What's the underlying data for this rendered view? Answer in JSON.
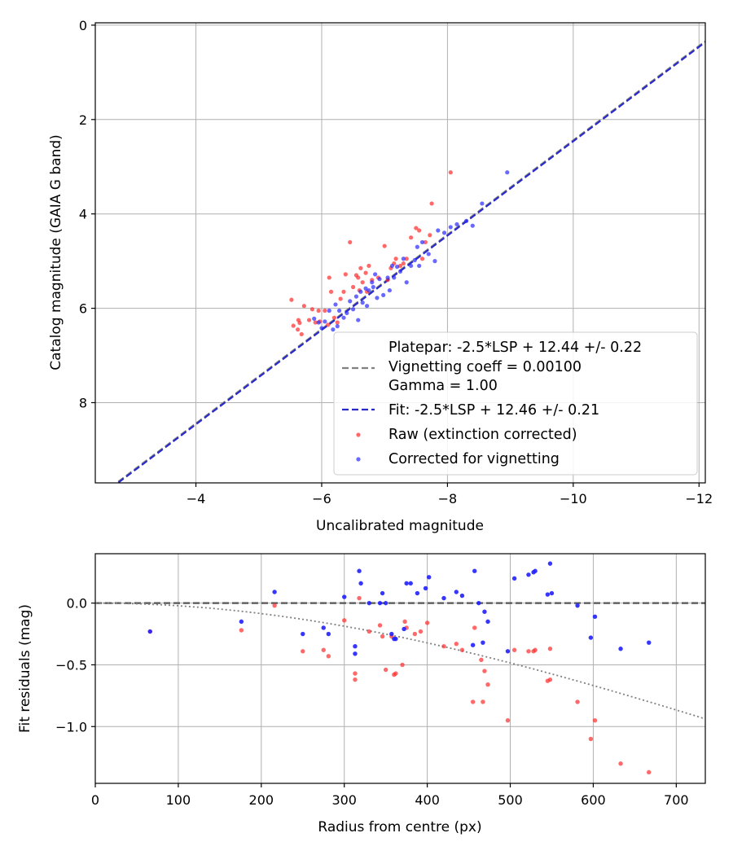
{
  "chart_data": [
    {
      "type": "scatter",
      "xlabel": "Uncalibrated magnitude",
      "ylabel": "Catalog magnitude (GAIA G band)",
      "xlim": [
        -2.4,
        -12.1
      ],
      "ylim": [
        9.7,
        -0.05
      ],
      "x_inverted": true,
      "y_inverted": true,
      "xticks": [
        -4,
        -6,
        -8,
        -10,
        -12
      ],
      "xtick_labels": [
        "−4",
        "−6",
        "−8",
        "−10",
        "−12"
      ],
      "yticks": [
        0,
        2,
        4,
        6,
        8
      ],
      "ytick_labels": [
        "0",
        "2",
        "4",
        "6",
        "8"
      ],
      "grid": true,
      "legend_position": "lower-right",
      "legend": {
        "platepar": "Platepar: -2.5*LSP + 12.44 +/- 0.22",
        "vignetting": "Vignetting coeff = 0.00100",
        "gamma": "Gamma = 1.00",
        "fit": "Fit: -2.5*LSP + 12.46 +/- 0.21",
        "raw": "Raw (extinction corrected)",
        "corrected": "Corrected for vignetting"
      },
      "lines": [
        {
          "name": "platepar",
          "slope": 1.0,
          "intercept": 12.44,
          "color": "#808080",
          "style": "dashed"
        },
        {
          "name": "fit",
          "slope": 1.0,
          "intercept": 12.46,
          "color": "#2a2acc",
          "style": "dashed"
        }
      ],
      "series": [
        {
          "name": "Raw (extinction corrected)",
          "color": "#ff2a2a",
          "points": [
            [
              -5.52,
              5.82
            ],
            [
              -5.55,
              6.37
            ],
            [
              -5.62,
              6.45
            ],
            [
              -5.63,
              6.25
            ],
            [
              -5.65,
              6.31
            ],
            [
              -5.68,
              6.55
            ],
            [
              -5.72,
              5.95
            ],
            [
              -5.8,
              6.25
            ],
            [
              -5.85,
              6.02
            ],
            [
              -5.9,
              6.3
            ],
            [
              -5.95,
              6.05
            ],
            [
              -5.97,
              6.28
            ],
            [
              -6.05,
              6.05
            ],
            [
              -6.1,
              6.35
            ],
            [
              -6.12,
              5.35
            ],
            [
              -6.15,
              5.65
            ],
            [
              -6.2,
              6.2
            ],
            [
              -6.25,
              6.3
            ],
            [
              -6.3,
              5.8
            ],
            [
              -6.35,
              5.65
            ],
            [
              -6.38,
              5.28
            ],
            [
              -6.45,
              4.6
            ],
            [
              -6.5,
              5.55
            ],
            [
              -6.55,
              5.3
            ],
            [
              -6.58,
              5.35
            ],
            [
              -6.6,
              5.62
            ],
            [
              -6.62,
              5.15
            ],
            [
              -6.65,
              5.45
            ],
            [
              -6.7,
              5.25
            ],
            [
              -6.72,
              5.65
            ],
            [
              -6.75,
              5.1
            ],
            [
              -6.8,
              5.4
            ],
            [
              -6.9,
              5.35
            ],
            [
              -7.0,
              4.68
            ],
            [
              -7.05,
              5.4
            ],
            [
              -7.1,
              5.15
            ],
            [
              -7.15,
              5.05
            ],
            [
              -7.18,
              4.95
            ],
            [
              -7.25,
              5.1
            ],
            [
              -7.3,
              5.05
            ],
            [
              -7.35,
              4.95
            ],
            [
              -7.42,
              4.5
            ],
            [
              -7.5,
              4.3
            ],
            [
              -7.55,
              4.35
            ],
            [
              -7.6,
              4.95
            ],
            [
              -7.65,
              4.6
            ],
            [
              -7.72,
              4.45
            ],
            [
              -7.75,
              3.78
            ],
            [
              -8.05,
              3.12
            ]
          ]
        },
        {
          "name": "Corrected for vignetting",
          "color": "#2a2aff",
          "points": [
            [
              -5.88,
              6.22
            ],
            [
              -5.95,
              6.3
            ],
            [
              -6.0,
              6.42
            ],
            [
              -6.05,
              6.28
            ],
            [
              -6.12,
              6.05
            ],
            [
              -6.18,
              6.45
            ],
            [
              -6.22,
              5.92
            ],
            [
              -6.25,
              6.38
            ],
            [
              -6.28,
              6.05
            ],
            [
              -6.35,
              6.2
            ],
            [
              -6.4,
              6.1
            ],
            [
              -6.45,
              5.85
            ],
            [
              -6.5,
              6.02
            ],
            [
              -6.55,
              5.75
            ],
            [
              -6.58,
              6.25
            ],
            [
              -6.62,
              5.65
            ],
            [
              -6.65,
              5.88
            ],
            [
              -6.7,
              5.58
            ],
            [
              -6.72,
              5.95
            ],
            [
              -6.75,
              5.62
            ],
            [
              -6.8,
              5.45
            ],
            [
              -6.82,
              5.55
            ],
            [
              -6.85,
              5.28
            ],
            [
              -6.88,
              5.78
            ],
            [
              -6.92,
              5.38
            ],
            [
              -6.98,
              5.72
            ],
            [
              -7.05,
              5.35
            ],
            [
              -7.08,
              5.62
            ],
            [
              -7.12,
              5.1
            ],
            [
              -7.15,
              5.35
            ],
            [
              -7.2,
              5.12
            ],
            [
              -7.25,
              5.22
            ],
            [
              -7.3,
              4.95
            ],
            [
              -7.35,
              5.45
            ],
            [
              -7.42,
              5.1
            ],
            [
              -7.48,
              4.98
            ],
            [
              -7.52,
              4.7
            ],
            [
              -7.55,
              5.1
            ],
            [
              -7.6,
              4.6
            ],
            [
              -7.7,
              4.85
            ],
            [
              -7.8,
              5.0
            ],
            [
              -7.85,
              4.35
            ],
            [
              -7.95,
              4.4
            ],
            [
              -8.05,
              4.28
            ],
            [
              -8.15,
              4.22
            ],
            [
              -8.3,
              4.15
            ],
            [
              -8.4,
              4.25
            ],
            [
              -8.55,
              3.78
            ],
            [
              -8.95,
              3.12
            ]
          ]
        }
      ]
    },
    {
      "type": "scatter",
      "xlabel": "Radius from centre (px)",
      "ylabel": "Fit residuals (mag)",
      "xlim": [
        0,
        735
      ],
      "ylim": [
        -1.46,
        0.4
      ],
      "xticks": [
        0,
        100,
        200,
        300,
        400,
        500,
        600,
        700
      ],
      "xtick_labels": [
        "0",
        "100",
        "200",
        "300",
        "400",
        "500",
        "600",
        "700"
      ],
      "yticks": [
        0.0,
        -0.5,
        -1.0
      ],
      "ytick_labels": [
        "0.0",
        "−0.5",
        "−1.0"
      ],
      "grid": true,
      "zero_line": {
        "y": 0,
        "color": "#555555",
        "style": "dashed"
      },
      "vignetting_curve": {
        "coeff": 0.001,
        "color": "#808080",
        "style": "dotted"
      },
      "series": [
        {
          "name": "Raw (extinction corrected)",
          "color": "#ff2a2a",
          "points": [
            [
              66,
              -0.23
            ],
            [
              176,
              -0.22
            ],
            [
              216,
              -0.02
            ],
            [
              250,
              -0.39
            ],
            [
              275,
              -0.38
            ],
            [
              281,
              -0.43
            ],
            [
              300,
              -0.14
            ],
            [
              313,
              -0.57
            ],
            [
              313,
              -0.62
            ],
            [
              318,
              0.04
            ],
            [
              330,
              -0.23
            ],
            [
              343,
              -0.18
            ],
            [
              346,
              -0.27
            ],
            [
              350,
              -0.54
            ],
            [
              357,
              -0.27
            ],
            [
              360,
              -0.58
            ],
            [
              362,
              -0.57
            ],
            [
              370,
              -0.5
            ],
            [
              373,
              -0.15
            ],
            [
              375,
              -0.2
            ],
            [
              385,
              -0.25
            ],
            [
              392,
              -0.23
            ],
            [
              400,
              -0.16
            ],
            [
              420,
              -0.35
            ],
            [
              435,
              -0.33
            ],
            [
              442,
              -0.38
            ],
            [
              455,
              -0.8
            ],
            [
              457,
              -0.2
            ],
            [
              465,
              -0.46
            ],
            [
              467,
              -0.8
            ],
            [
              469,
              -0.55
            ],
            [
              473,
              -0.66
            ],
            [
              497,
              -0.95
            ],
            [
              505,
              -0.38
            ],
            [
              522,
              -0.39
            ],
            [
              528,
              -0.39
            ],
            [
              530,
              -0.38
            ],
            [
              545,
              -0.63
            ],
            [
              548,
              -0.62
            ],
            [
              548,
              -0.37
            ],
            [
              581,
              -0.8
            ],
            [
              597,
              -1.1
            ],
            [
              602,
              -0.95
            ],
            [
              633,
              -1.3
            ],
            [
              667,
              -1.37
            ]
          ]
        },
        {
          "name": "Corrected for vignetting",
          "color": "#2020ff",
          "points": [
            [
              66,
              -0.23
            ],
            [
              176,
              -0.15
            ],
            [
              216,
              0.09
            ],
            [
              250,
              -0.25
            ],
            [
              275,
              -0.2
            ],
            [
              281,
              -0.25
            ],
            [
              300,
              0.05
            ],
            [
              313,
              -0.35
            ],
            [
              313,
              -0.41
            ],
            [
              318,
              0.26
            ],
            [
              320,
              0.16
            ],
            [
              330,
              0.0
            ],
            [
              343,
              0.0
            ],
            [
              346,
              0.08
            ],
            [
              350,
              0.0
            ],
            [
              357,
              -0.25
            ],
            [
              360,
              -0.29
            ],
            [
              362,
              -0.29
            ],
            [
              372,
              -0.21
            ],
            [
              375,
              0.16
            ],
            [
              380,
              0.16
            ],
            [
              388,
              0.08
            ],
            [
              398,
              0.12
            ],
            [
              402,
              0.21
            ],
            [
              420,
              0.04
            ],
            [
              435,
              0.09
            ],
            [
              442,
              0.06
            ],
            [
              455,
              -0.34
            ],
            [
              457,
              0.26
            ],
            [
              462,
              0.0
            ],
            [
              467,
              -0.32
            ],
            [
              469,
              -0.07
            ],
            [
              473,
              -0.15
            ],
            [
              497,
              -0.39
            ],
            [
              505,
              0.2
            ],
            [
              522,
              0.23
            ],
            [
              528,
              0.25
            ],
            [
              530,
              0.26
            ],
            [
              545,
              0.07
            ],
            [
              548,
              0.32
            ],
            [
              550,
              0.08
            ],
            [
              581,
              -0.02
            ],
            [
              597,
              -0.28
            ],
            [
              602,
              -0.11
            ],
            [
              633,
              -0.37
            ],
            [
              667,
              -0.32
            ]
          ]
        }
      ]
    }
  ]
}
